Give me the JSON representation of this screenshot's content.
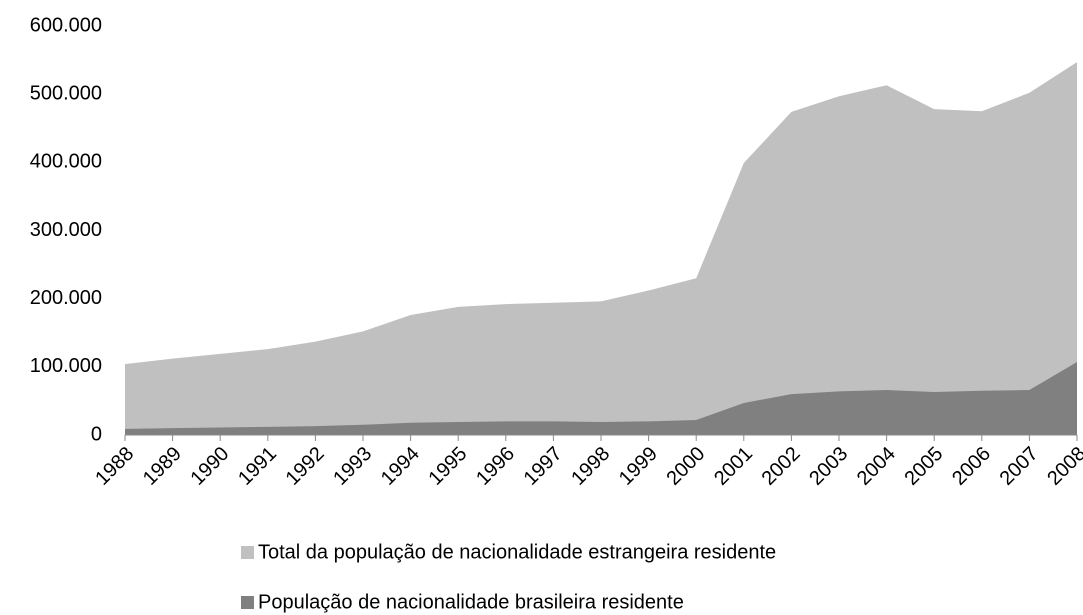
{
  "chart_data": {
    "type": "area",
    "categories": [
      "1988",
      "1989",
      "1990",
      "1991",
      "1992",
      "1993",
      "1994",
      "1995",
      "1996",
      "1997",
      "1998",
      "1999",
      "2000",
      "2001",
      "2002",
      "2003",
      "2004",
      "2005",
      "2006",
      "2007",
      "2008"
    ],
    "series": [
      {
        "name": "Total da população de nacionalidade estrangeira residente",
        "color": "#c0c0c0",
        "values": [
          104000,
          112000,
          119000,
          126000,
          137000,
          152000,
          176000,
          188000,
          192000,
          194000,
          196000,
          212000,
          230000,
          399000,
          474000,
          497000,
          513000,
          478000,
          475000,
          502000,
          547000
        ]
      },
      {
        "name": "População de nacionalidade brasileira residente",
        "color": "#808080",
        "values": [
          9000,
          10000,
          11000,
          12000,
          13000,
          15000,
          18000,
          19000,
          20000,
          20000,
          19000,
          20000,
          22000,
          47000,
          60000,
          64000,
          66000,
          63000,
          65000,
          66000,
          107000
        ]
      }
    ],
    "ylim": [
      0,
      600000
    ],
    "yticks": [
      0,
      {
        "value": 100000,
        "label": "100.000"
      },
      {
        "value": 200000,
        "label": "200.000"
      },
      {
        "value": 300000,
        "label": "300.000"
      },
      {
        "value": 400000,
        "label": "400.000"
      },
      {
        "value": 500000,
        "label": "500.000"
      },
      {
        "value": 600000,
        "label": "600.000"
      }
    ]
  }
}
